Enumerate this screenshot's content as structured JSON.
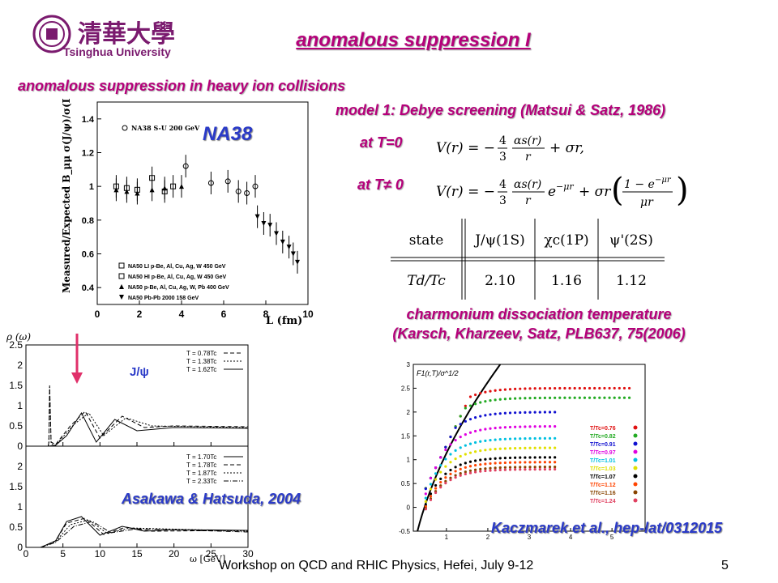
{
  "header": {
    "logo_text": "清華大學",
    "university": "Tsinghua University",
    "title": "anomalous suppression I"
  },
  "subtitle": "anomalous suppression in heavy ion collisions",
  "model": {
    "heading": "model 1: Debye screening (Matsui & Satz, 1986)",
    "label_t0": "at T=0",
    "label_tn": "at T≠ 0"
  },
  "table": {
    "row1": [
      "state",
      "J/ψ(1S)",
      "χc(1P)",
      "ψ'(2S)"
    ],
    "row2": [
      "Td/Tc",
      "2.10",
      "1.16",
      "1.12"
    ]
  },
  "caption": {
    "line1": "charmonium dissociation temperature",
    "line2": "(Karsch, Kharzeev, Satz, PLB637, 75(2006)"
  },
  "na38_plot": {
    "label": "NA38",
    "ylabel": "Measured/Expected B_μμ σ(J/ψ)/σ(DY)",
    "xlabel": "L (fm)",
    "legend_top": "NA38 S-U 200 GeV",
    "legend": [
      "NA50 LI p-Be, Al, Cu, Ag, W 450 GeV",
      "NA50 HI p-Be, Al, Cu, Ag, W 450 GeV",
      "NA50 p-Be, Al, Cu, Ag, W, Pb 400 GeV",
      "NA50 Pb-Pb 2000 158 GeV"
    ],
    "xticks": [
      "0",
      "2",
      "4",
      "6",
      "8",
      "10"
    ],
    "yticks": [
      "0.4",
      "0.6",
      "0.8",
      "1",
      "1.2",
      "1.4"
    ]
  },
  "spectral_plot": {
    "ylabel": "ρ (ω)",
    "xlabel": "ω [GeV]",
    "peak_label": "J/ψ",
    "legend_upper": [
      "T = 0.78Tc",
      "T = 1.38Tc",
      "T = 1.62Tc"
    ],
    "legend_lower": [
      "T = 1.70Tc",
      "T = 1.78Tc",
      "T = 1.87Tc",
      "T = 2.33Tc"
    ],
    "yticks": [
      "0",
      "0.5",
      "1",
      "1.5",
      "2",
      "2.5"
    ],
    "xticks": [
      "0",
      "5",
      "10",
      "15",
      "20",
      "25",
      "30"
    ],
    "credit": "Asakawa & Hatsuda, 2004"
  },
  "free_energy_plot": {
    "ylabel": "F1(r,T)/σ^1/2",
    "yticks": [
      "-0.5",
      "0",
      "0.5",
      "1",
      "1.5",
      "2",
      "2.5",
      "3"
    ],
    "xticks": [
      "1",
      "2",
      "3",
      "4",
      "5"
    ],
    "legend": [
      "T/Tc=0.76",
      "T/Tc=0.82",
      "T/Tc=0.91",
      "T/Tc=0.97",
      "T/Tc=1.01",
      "T/Tc=1.03",
      "T/Tc=1.07",
      "T/Tc=1.12",
      "T/Tc=1.16",
      "T/Tc=1.24"
    ],
    "credit": "Kaczmarek et al., hep-lat/0312015"
  },
  "footer": {
    "text": "Workshop on QCD and RHIC Physics, Hefei, July 9-12",
    "page": "5"
  },
  "colors": {
    "magenta": "#b5007a",
    "blue": "#2a3ac8"
  }
}
